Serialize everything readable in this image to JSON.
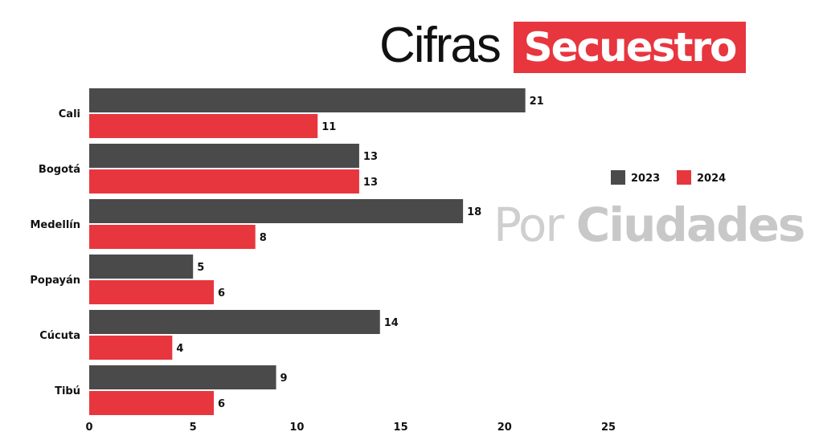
{
  "title": {
    "part1": "Cifras",
    "part2": "Secuestro"
  },
  "subtitle": {
    "part1": "Por",
    "part2": "Ciudades"
  },
  "colors": {
    "2023": "#4a4a4a",
    "2024": "#e8363f",
    "title_bg": "#e8363f",
    "subtitle": "#c8c8c8"
  },
  "chart_data": {
    "type": "bar",
    "orientation": "horizontal",
    "categories": [
      "Cali",
      "Bogotá",
      "Medellín",
      "Popayán",
      "Cúcuta",
      "Tibú"
    ],
    "series": [
      {
        "name": "2023",
        "values": [
          21,
          13,
          18,
          5,
          14,
          9
        ]
      },
      {
        "name": "2024",
        "values": [
          11,
          13,
          8,
          6,
          4,
          6
        ]
      }
    ],
    "xlim": [
      0,
      25
    ],
    "xticks": [
      "0",
      "5",
      "10",
      "15",
      "20",
      "25"
    ],
    "grid": false,
    "legend": "right",
    "title": "Cifras Secuestro",
    "subtitle": "Por Ciudades"
  }
}
